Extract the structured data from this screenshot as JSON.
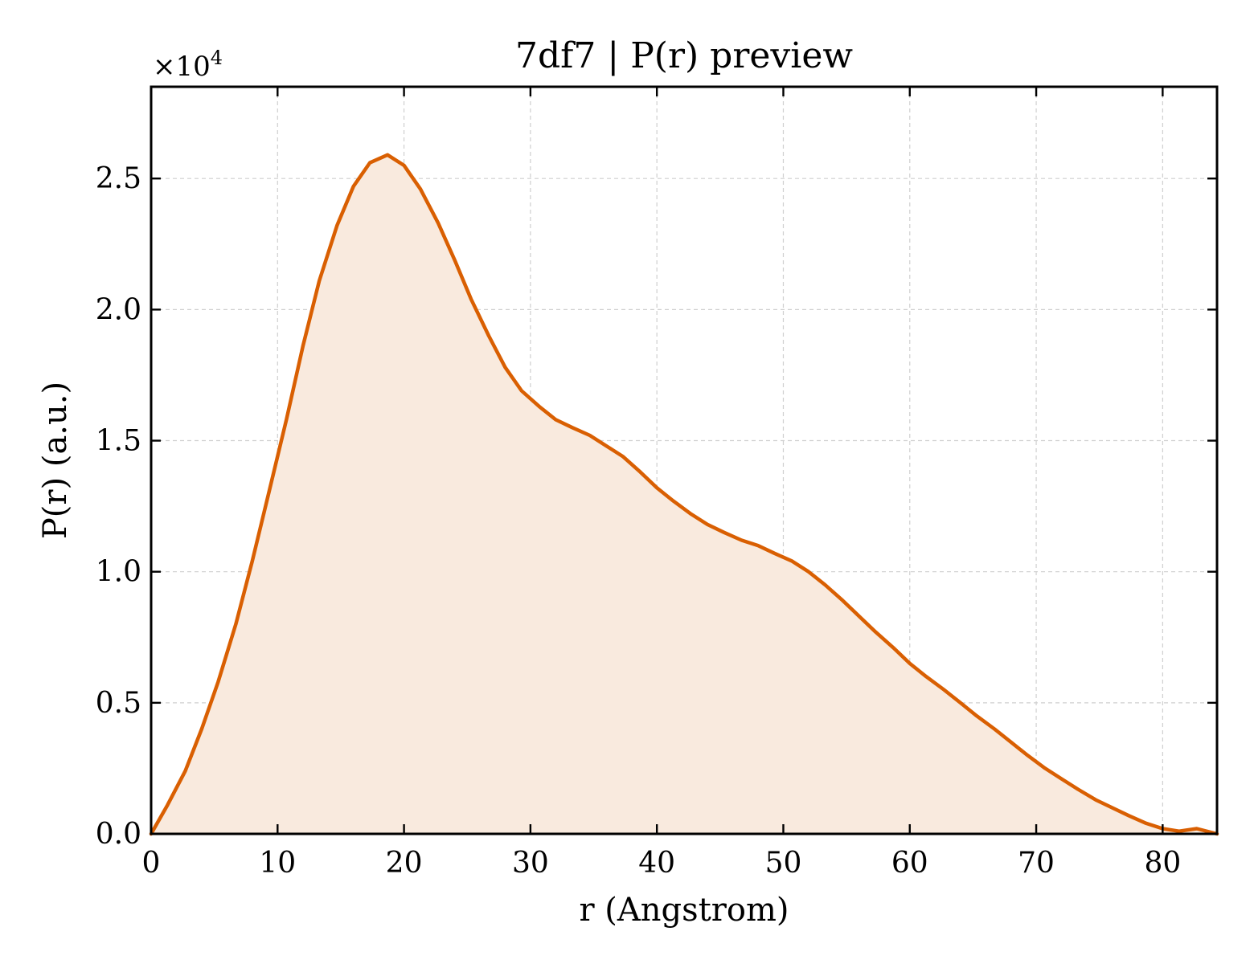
{
  "chart_data": {
    "type": "area",
    "title": "7df7 | P(r) preview",
    "xlabel": "r (Angstrom)",
    "ylabel": "P(r) (a.u.)",
    "y_multiplier": {
      "base": "×10",
      "exponent": "4"
    },
    "xlim": [
      0,
      84.3
    ],
    "ylim": [
      0,
      2.85
    ],
    "x_ticks": [
      0,
      10,
      20,
      30,
      40,
      50,
      60,
      70,
      80
    ],
    "x_tick_labels": [
      "0",
      "10",
      "20",
      "30",
      "40",
      "50",
      "60",
      "70",
      "80"
    ],
    "y_ticks": [
      0.0,
      0.5,
      1.0,
      1.5,
      2.0,
      2.5
    ],
    "y_tick_labels": [
      "0.0",
      "0.5",
      "1.0",
      "1.5",
      "2.0",
      "2.5"
    ],
    "grid": true,
    "line_color": "#d95f02",
    "fill_color": "#f9eade",
    "series": [
      {
        "x": [
          0,
          1.3,
          2.7,
          4.0,
          5.3,
          6.7,
          8.0,
          9.3,
          10.7,
          12.0,
          13.3,
          14.7,
          16.0,
          17.3,
          18.7,
          20.0,
          21.3,
          22.7,
          24.0,
          25.3,
          26.7,
          28.0,
          29.3,
          30.7,
          32.0,
          33.3,
          34.7,
          36.0,
          37.3,
          38.7,
          40.0,
          41.3,
          42.7,
          44.0,
          45.3,
          46.7,
          48.0,
          49.3,
          50.7,
          52.0,
          53.3,
          54.7,
          56.0,
          57.3,
          58.7,
          60.0,
          61.3,
          62.7,
          64.0,
          65.3,
          66.7,
          68.0,
          69.3,
          70.7,
          72.0,
          73.3,
          74.7,
          76.0,
          77.3,
          78.7,
          80.0,
          81.3,
          82.7,
          84.3
        ],
        "y": [
          0.0,
          0.11,
          0.24,
          0.4,
          0.58,
          0.8,
          1.04,
          1.3,
          1.58,
          1.86,
          2.11,
          2.32,
          2.47,
          2.56,
          2.59,
          2.55,
          2.46,
          2.33,
          2.19,
          2.04,
          1.9,
          1.78,
          1.69,
          1.63,
          1.58,
          1.55,
          1.52,
          1.48,
          1.44,
          1.38,
          1.32,
          1.27,
          1.22,
          1.18,
          1.15,
          1.12,
          1.1,
          1.07,
          1.04,
          1.0,
          0.95,
          0.89,
          0.83,
          0.77,
          0.71,
          0.65,
          0.6,
          0.55,
          0.5,
          0.45,
          0.4,
          0.35,
          0.3,
          0.25,
          0.21,
          0.17,
          0.13,
          0.1,
          0.07,
          0.04,
          0.02,
          0.01,
          0.02,
          0.0
        ]
      }
    ]
  }
}
